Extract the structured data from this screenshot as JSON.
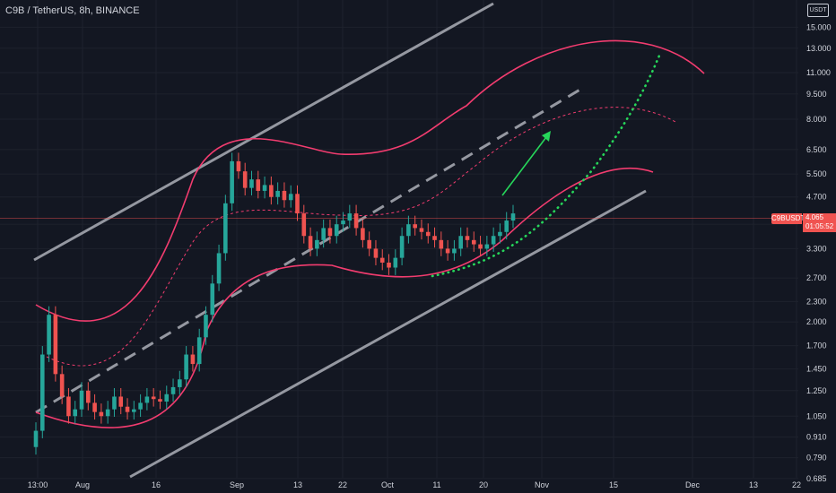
{
  "header": {
    "title": "C9B / TetherUS, 8h, BINANCE",
    "currency_button": "USDT"
  },
  "price_label": {
    "symbol": "C9BUSDT",
    "price": "4.065",
    "countdown": "01:05:52"
  },
  "colors": {
    "background": "#131722",
    "grid": "#1e222d",
    "candle_up": "#26a69a",
    "candle_down": "#ef5350",
    "curved_channel": "#f23c6f",
    "straight_channel": "#9598a1",
    "projection": "#26d65a",
    "price_line": "#f05350"
  },
  "chart_data": {
    "type": "candlestick",
    "y_scale": "log",
    "ylim": [
      0.66,
      17.0
    ],
    "y_ticks": [
      0.685,
      0.79,
      0.91,
      1.05,
      1.25,
      1.45,
      1.7,
      2.0,
      2.3,
      2.7,
      3.3,
      3.9,
      4.7,
      5.5,
      6.5,
      8.0,
      9.5,
      11.0,
      13.0,
      15.0
    ],
    "y_tick_labels": [
      "0.685",
      "0.790",
      "0.910",
      "1.050",
      "1.250",
      "1.450",
      "1.700",
      "2.000",
      "2.300",
      "2.700",
      "3.300",
      "3.900",
      "4.700",
      "5.500",
      "6.500",
      "8.000",
      "9.500",
      "11.000",
      "13.000",
      "15.000"
    ],
    "x_ticks": [
      "13:00",
      "Aug",
      "16",
      "Sep",
      "13",
      "22",
      "Oct",
      "11",
      "20",
      "Nov",
      "15",
      "Dec",
      "13",
      "22"
    ],
    "last_price": 4.065,
    "candle_closes": [
      0.95,
      1.6,
      2.1,
      1.4,
      1.2,
      1.05,
      1.1,
      1.25,
      1.15,
      1.08,
      1.05,
      1.1,
      1.2,
      1.12,
      1.08,
      1.1,
      1.15,
      1.2,
      1.18,
      1.16,
      1.22,
      1.28,
      1.35,
      1.6,
      1.5,
      1.8,
      2.1,
      2.6,
      3.2,
      4.5,
      6.0,
      5.6,
      5.0,
      5.3,
      4.9,
      5.1,
      4.7,
      4.9,
      4.6,
      4.8,
      4.2,
      3.6,
      3.3,
      3.5,
      3.8,
      3.6,
      3.9,
      4.0,
      4.2,
      3.8,
      3.5,
      3.3,
      3.1,
      3.0,
      2.9,
      3.1,
      3.6,
      3.9,
      3.8,
      3.7,
      3.6,
      3.5,
      3.3,
      3.2,
      3.3,
      3.6,
      3.5,
      3.4,
      3.3,
      3.4,
      3.6,
      3.7,
      4.0,
      4.2
    ],
    "annotations": [
      {
        "type": "parallel_channel",
        "color": "#9598a1",
        "lines": [
          "upper",
          "middle-dashed",
          "lower"
        ]
      },
      {
        "type": "curved_channel",
        "color": "#f23c6f",
        "lines": [
          "upper",
          "middle-dotted",
          "lower"
        ]
      },
      {
        "type": "dotted_projection",
        "color": "#26d65a"
      },
      {
        "type": "arrow",
        "color": "#26d65a",
        "direction": "up"
      }
    ]
  }
}
